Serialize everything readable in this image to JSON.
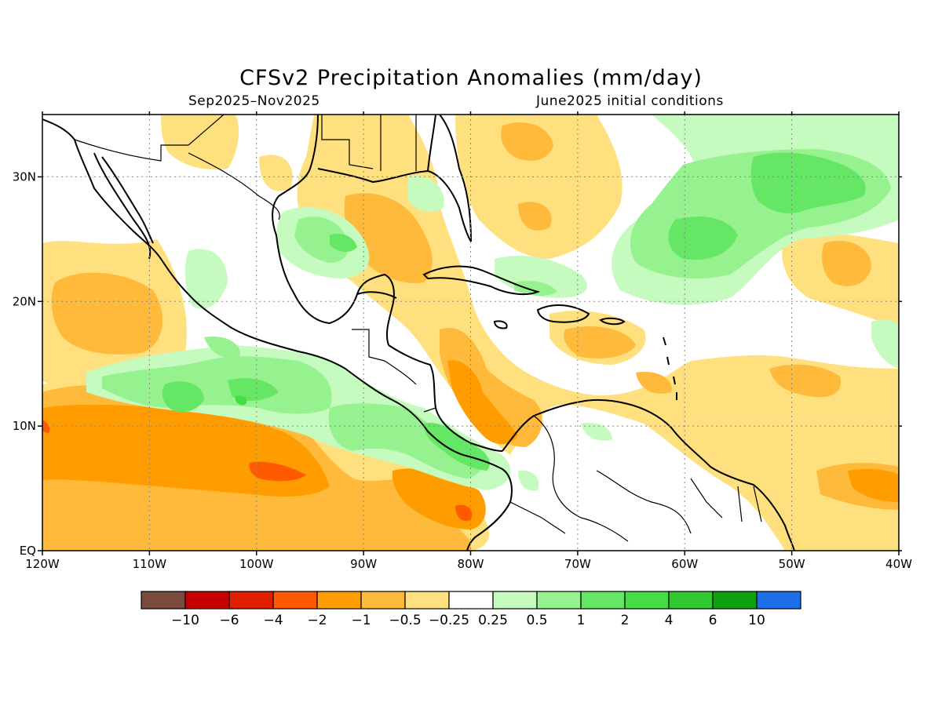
{
  "title": "CFSv2 Precipitation Anomalies (mm/day)",
  "subtitle_left": "Sep2025–Nov2025",
  "subtitle_right": "June2025 initial conditions",
  "map": {
    "lon_range": [
      -120,
      -40
    ],
    "lat_range": [
      0,
      35
    ],
    "lon_ticks": [
      {
        "v": -120,
        "label": "120W"
      },
      {
        "v": -110,
        "label": "110W"
      },
      {
        "v": -100,
        "label": "100W"
      },
      {
        "v": -90,
        "label": "90W"
      },
      {
        "v": -80,
        "label": "80W"
      },
      {
        "v": -70,
        "label": "70W"
      },
      {
        "v": -60,
        "label": "60W"
      },
      {
        "v": -50,
        "label": "50W"
      },
      {
        "v": -40,
        "label": "40W"
      }
    ],
    "lat_ticks": [
      {
        "v": 0,
        "label": "EQ"
      },
      {
        "v": 10,
        "label": "10N"
      },
      {
        "v": 20,
        "label": "20N"
      },
      {
        "v": 30,
        "label": "30N"
      }
    ],
    "grid": true
  },
  "colorbar": {
    "colors": [
      "#7a4b3d",
      "#c70000",
      "#e01e00",
      "#ff5a00",
      "#ff9d00",
      "#ffb93b",
      "#ffe07f",
      "#ffffff",
      "#c5fbbe",
      "#96f28f",
      "#66e665",
      "#46dc46",
      "#32c832",
      "#0ea00e",
      "#1d6fe8"
    ],
    "labels": [
      "−10",
      "−6",
      "−4",
      "−2",
      "−1",
      "−0.5",
      "−0.25",
      "0.25",
      "0.5",
      "1",
      "2",
      "4",
      "6",
      "10"
    ]
  }
}
